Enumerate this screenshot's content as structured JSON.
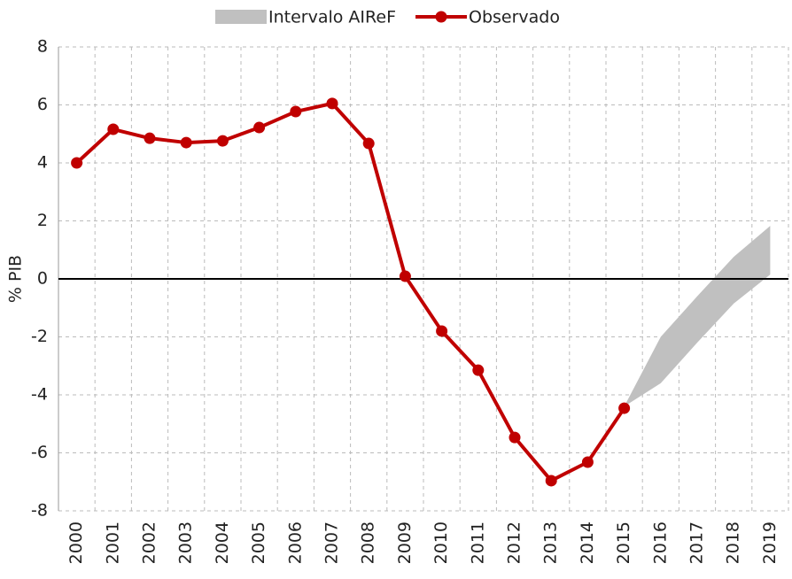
{
  "chart_data": {
    "type": "line",
    "y_label": "% PIB",
    "categories": [
      "2000",
      "2001",
      "2002",
      "2003",
      "2004",
      "2005",
      "2006",
      "2007",
      "2008",
      "2009",
      "2010",
      "2011",
      "2012",
      "2013",
      "2014",
      "2015",
      "2016",
      "2017",
      "2018",
      "2019"
    ],
    "series": [
      {
        "name": "Intervalo AIReF",
        "type": "range",
        "color": "#c0c0c0",
        "lower": [
          null,
          null,
          null,
          null,
          null,
          null,
          null,
          null,
          null,
          null,
          null,
          null,
          null,
          null,
          null,
          -4.4,
          -3.6,
          -2.2,
          -0.85,
          0.15
        ],
        "upper": [
          null,
          null,
          null,
          null,
          null,
          null,
          null,
          null,
          null,
          null,
          null,
          null,
          null,
          null,
          null,
          -4.4,
          -2.0,
          -0.6,
          0.76,
          1.83
        ]
      },
      {
        "name": "Observado",
        "type": "line",
        "color": "#c00000",
        "values": [
          4.0,
          5.16,
          4.85,
          4.7,
          4.76,
          5.22,
          5.77,
          6.05,
          4.67,
          0.09,
          -1.8,
          -3.15,
          -5.47,
          -6.96,
          -6.32,
          -4.46,
          null,
          null,
          null,
          null
        ]
      }
    ],
    "ylim": [
      -8,
      8
    ],
    "yticks": [
      -8,
      -6,
      -4,
      -2,
      0,
      2,
      4,
      6,
      8
    ],
    "grid": true
  }
}
